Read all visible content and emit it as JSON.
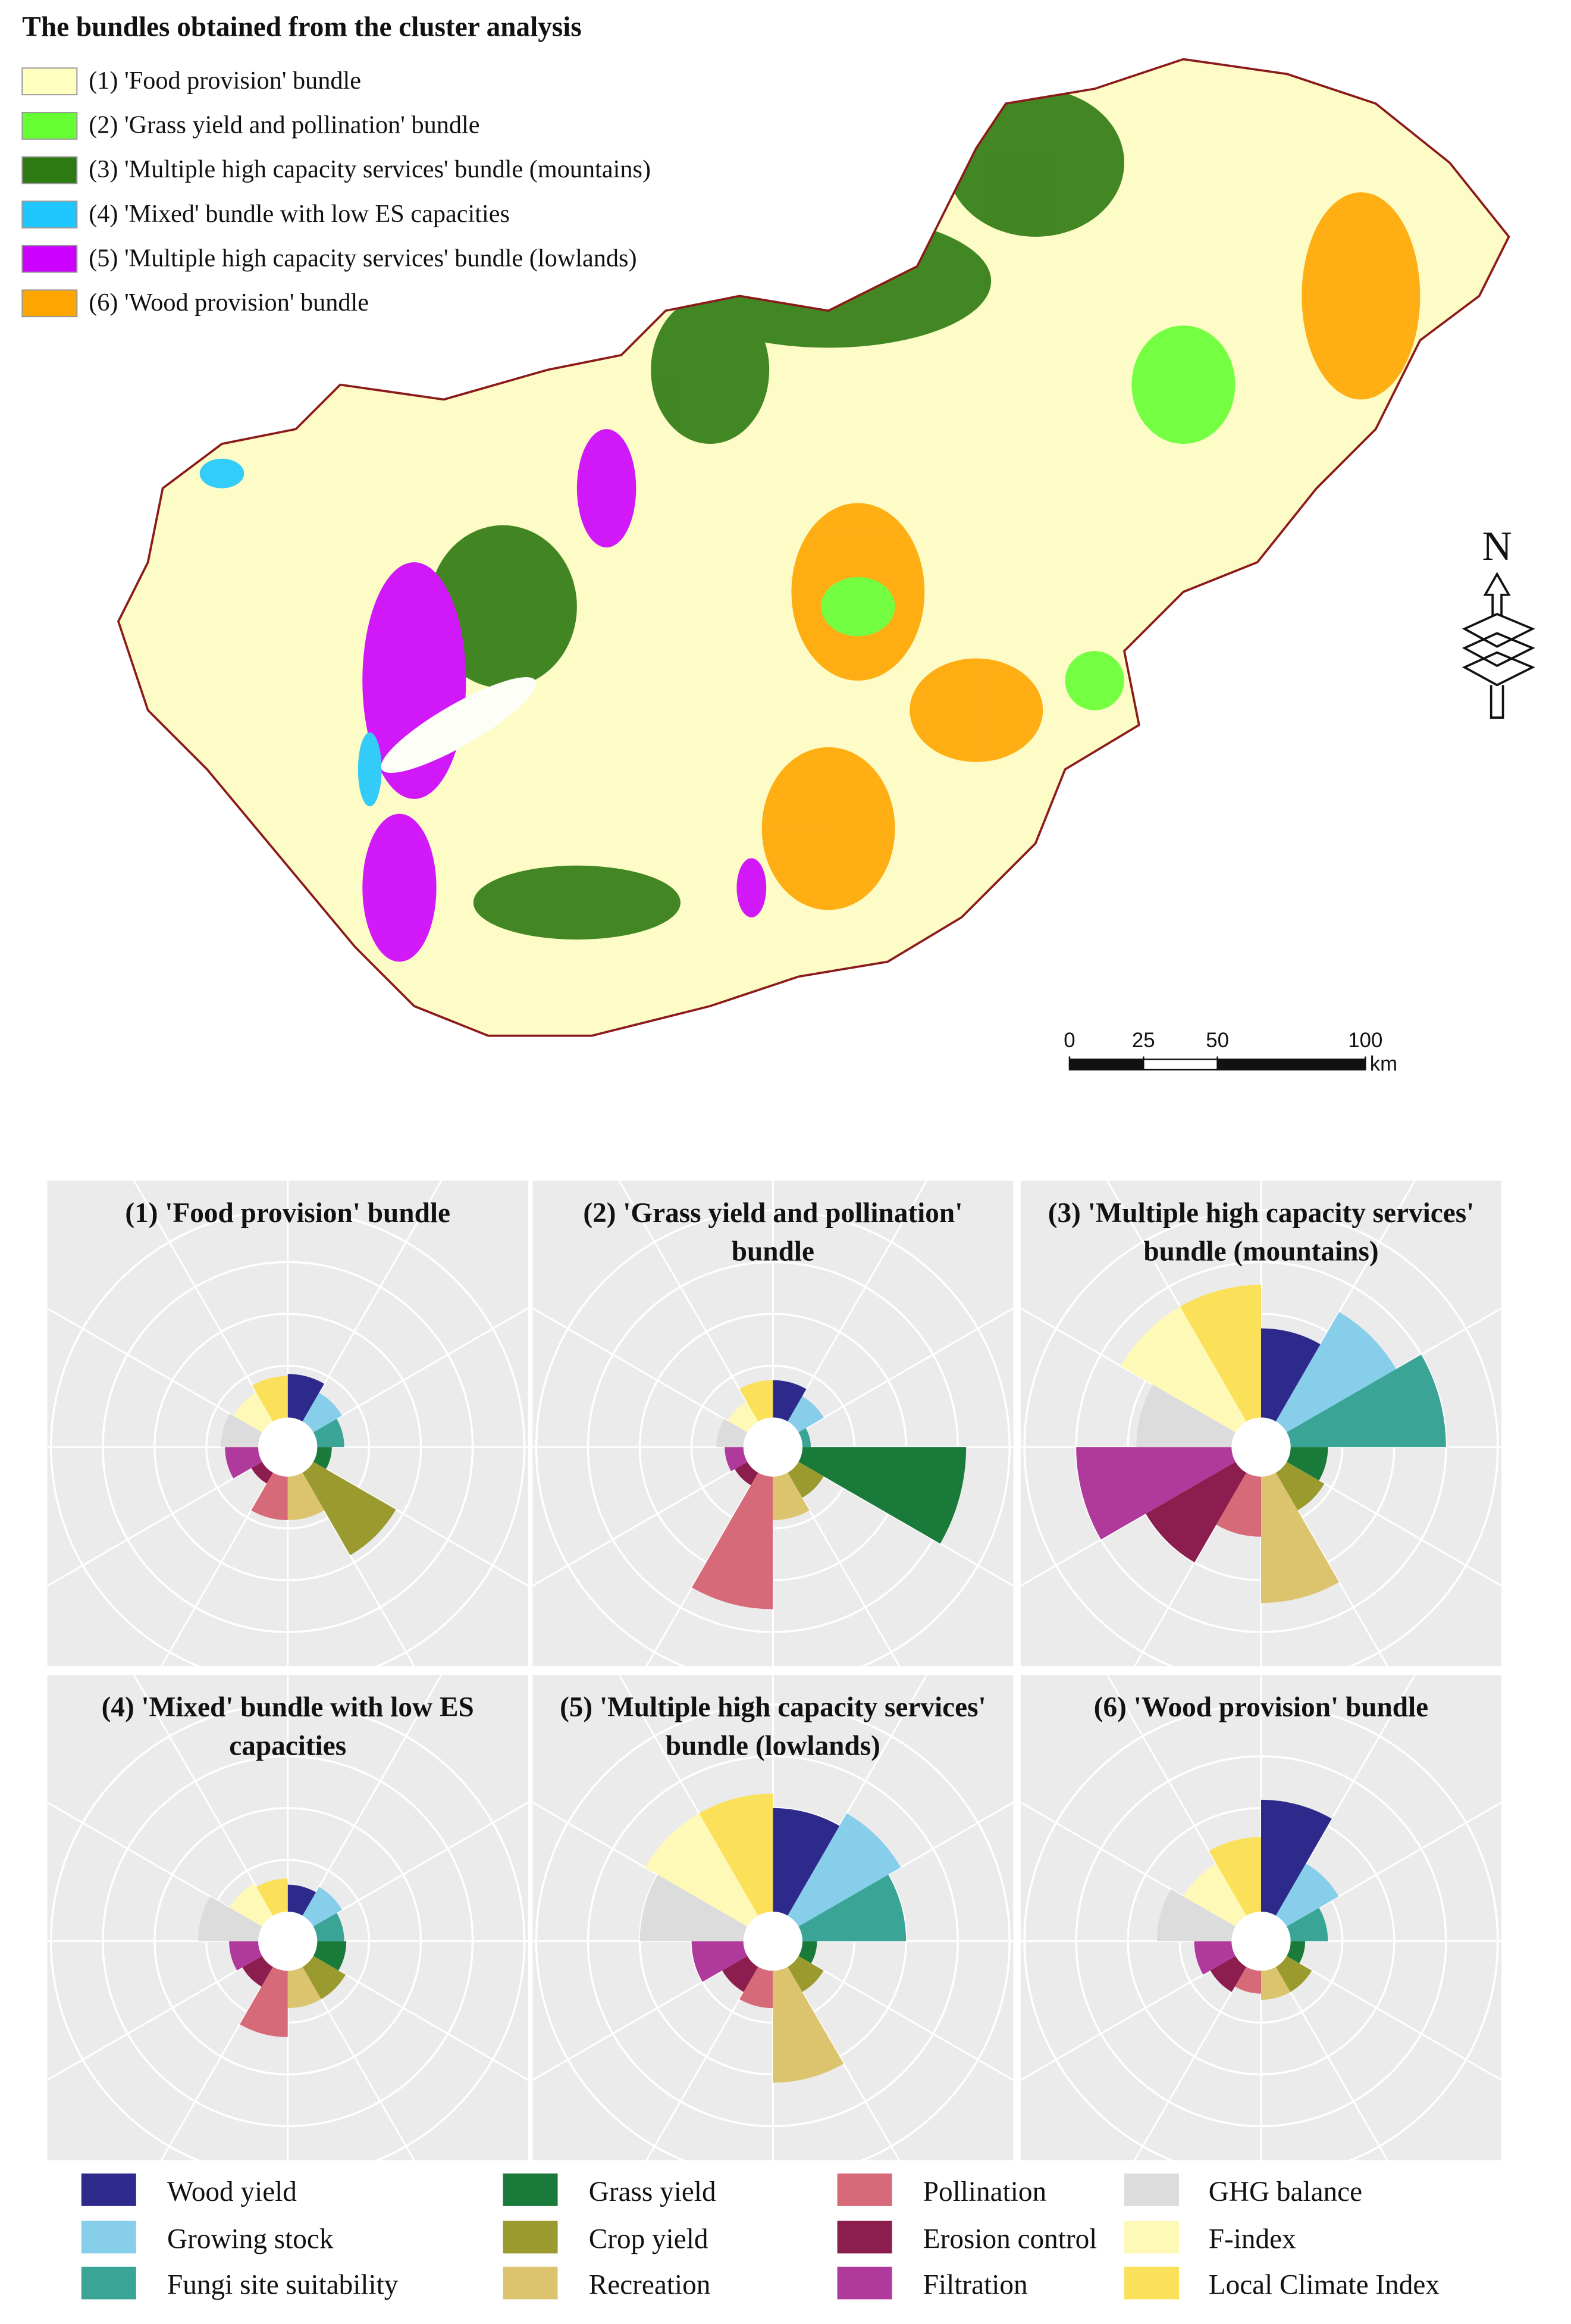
{
  "map": {
    "title": "The bundles obtained from the cluster analysis",
    "legend": [
      {
        "label": "(1) 'Food provision' bundle",
        "color": "#ffffc0"
      },
      {
        "label": "(2) 'Grass yield and pollination' bundle",
        "color": "#66ff33"
      },
      {
        "label": "(3) 'Multiple high capacity services' bundle (mountains)",
        "color": "#2d7a12"
      },
      {
        "label": "(4) 'Mixed' bundle with low ES capacities",
        "color": "#1ec8ff"
      },
      {
        "label": "(5) 'Multiple high capacity services' bundle (lowlands)",
        "color": "#cc00ff"
      },
      {
        "label": "(6) 'Wood provision' bundle",
        "color": "#ffa500"
      }
    ],
    "scale": {
      "ticks": [
        0,
        25,
        50,
        100
      ],
      "unit": "km"
    },
    "north": "N"
  },
  "chart_data": [
    {
      "type": "rose",
      "title": "(1)   'Food provision' bundle",
      "categories": [
        "Wood yield",
        "Growing stock",
        "Fungi site suitability",
        "Grass yield",
        "Crop yield",
        "Recreation",
        "Pollination",
        "Erosion control",
        "Filtration",
        "GHG balance",
        "F-index",
        "Local Climate Index"
      ],
      "colors": [
        "#2e2a8c",
        "#87ceeb",
        "#3aa597",
        "#1a7a3a",
        "#9a9a2f",
        "#dcc46e",
        "#d66a78",
        "#8c1d4f",
        "#b03a9b",
        "#dcdcdc",
        "#fff9b8",
        "#fbe05a"
      ],
      "values": [
        21,
        16,
        13,
        7,
        46,
        21,
        21,
        6,
        16,
        18,
        16,
        20
      ],
      "rlim": [
        0,
        100
      ],
      "rticks": [
        25,
        50,
        75,
        100
      ]
    },
    {
      "type": "rose",
      "title": "(2) 'Grass yield and pollination' bundle",
      "categories": [
        "Wood yield",
        "Growing stock",
        "Fungi site suitability",
        "Grass yield",
        "Crop yield",
        "Recreation",
        "Pollination",
        "Erosion control",
        "Filtration",
        "GHG balance",
        "F-index",
        "Local Climate Index"
      ],
      "colors": [
        "#2e2a8c",
        "#87ceeb",
        "#3aa597",
        "#1a7a3a",
        "#9a9a2f",
        "#dcc46e",
        "#d66a78",
        "#8c1d4f",
        "#b03a9b",
        "#dcdcdc",
        "#fff9b8",
        "#fbe05a"
      ],
      "values": [
        18,
        14,
        4,
        79,
        14,
        21,
        64,
        7,
        9,
        13,
        11,
        18
      ],
      "rlim": [
        0,
        100
      ],
      "rticks": [
        25,
        50,
        75,
        100
      ]
    },
    {
      "type": "rose",
      "title": "(3) 'Multiple high capacity services' bundle (mountains)",
      "categories": [
        "Wood yield",
        "Growing stock",
        "Fungi site suitability",
        "Grass yield",
        "Crop yield",
        "Recreation",
        "Pollination",
        "Erosion control",
        "Filtration",
        "GHG balance",
        "F-index",
        "Local Climate Index"
      ],
      "colors": [
        "#2e2a8c",
        "#87ceeb",
        "#3aa597",
        "#1a7a3a",
        "#9a9a2f",
        "#dcc46e",
        "#d66a78",
        "#8c1d4f",
        "#b03a9b",
        "#dcdcdc",
        "#fff9b8",
        "#fbe05a"
      ],
      "values": [
        43,
        61,
        75,
        18,
        21,
        61,
        29,
        50,
        75,
        46,
        64,
        64
      ],
      "rlim": [
        0,
        100
      ],
      "rticks": [
        25,
        50,
        75,
        100
      ]
    },
    {
      "type": "rose",
      "title": "(4) 'Mixed' bundle with low ES capacities",
      "categories": [
        "Wood yield",
        "Growing stock",
        "Fungi site suitability",
        "Grass yield",
        "Crop yield",
        "Recreation",
        "Pollination",
        "Erosion control",
        "Filtration",
        "GHG balance",
        "F-index",
        "Local Climate Index"
      ],
      "colors": [
        "#2e2a8c",
        "#87ceeb",
        "#3aa597",
        "#1a7a3a",
        "#9a9a2f",
        "#dcc46e",
        "#d66a78",
        "#8c1d4f",
        "#b03a9b",
        "#dcdcdc",
        "#fff9b8",
        "#fbe05a"
      ],
      "values": [
        13,
        16,
        13,
        14,
        18,
        18,
        32,
        11,
        14,
        29,
        18,
        16
      ],
      "rlim": [
        0,
        100
      ],
      "rticks": [
        25,
        50,
        75,
        100
      ]
    },
    {
      "type": "rose",
      "title": "(5) 'Multiple high capacity services' bundle (lowlands)",
      "categories": [
        "Wood yield",
        "Growing stock",
        "Fungi site suitability",
        "Grass yield",
        "Crop yield",
        "Recreation",
        "Pollination",
        "Erosion control",
        "Filtration",
        "GHG balance",
        "F-index",
        "Local Climate Index"
      ],
      "colors": [
        "#2e2a8c",
        "#87ceeb",
        "#3aa597",
        "#1a7a3a",
        "#9a9a2f",
        "#dcc46e",
        "#d66a78",
        "#8c1d4f",
        "#b03a9b",
        "#dcdcdc",
        "#fff9b8",
        "#fbe05a"
      ],
      "values": [
        50,
        57,
        50,
        7,
        14,
        54,
        18,
        14,
        25,
        50,
        57,
        57
      ],
      "rlim": [
        0,
        100
      ],
      "rticks": [
        25,
        50,
        75,
        100
      ]
    },
    {
      "type": "rose",
      "title": "(6) 'Wood provision' bundle",
      "categories": [
        "Wood yield",
        "Growing stock",
        "Fungi site suitability",
        "Grass yield",
        "Crop yield",
        "Recreation",
        "Pollination",
        "Erosion control",
        "Filtration",
        "GHG balance",
        "F-index",
        "Local Climate Index"
      ],
      "colors": [
        "#2e2a8c",
        "#87ceeb",
        "#3aa597",
        "#1a7a3a",
        "#9a9a2f",
        "#dcc46e",
        "#d66a78",
        "#8c1d4f",
        "#b03a9b",
        "#dcdcdc",
        "#fff9b8",
        "#fbe05a"
      ],
      "values": [
        54,
        29,
        18,
        7,
        14,
        14,
        11,
        14,
        18,
        36,
        29,
        36
      ],
      "rlim": [
        0,
        100
      ],
      "rticks": [
        25,
        50,
        75,
        100
      ]
    }
  ]
}
